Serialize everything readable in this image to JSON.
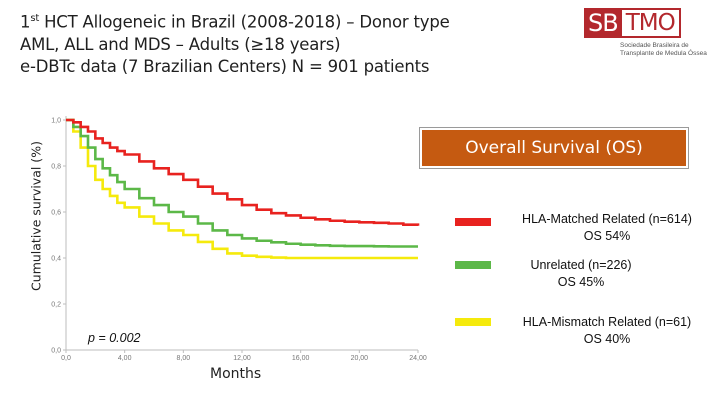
{
  "header": {
    "title_line1_pre": "1",
    "title_line1_sup": "st",
    "title_line1_post": " HCT Allogeneic in Brazil (2008-2018) – Donor type",
    "title_line2": "AML, ALL and MDS – Adults (≥18 years)",
    "title_line3": "e-DBTc data (7 Brazilian Centers) N = 901 patients"
  },
  "logo": {
    "sb": "SB",
    "tmo": "TMO",
    "subtitle": "Sociedade Brasileira de Transplante de Medula Óssea"
  },
  "os_box": {
    "label": "Overall Survival (OS)",
    "color": "#c55a11"
  },
  "chart_data": {
    "type": "line",
    "title": "Overall Survival (OS)",
    "xlabel": "Months",
    "ylabel": "Cumulative survival (%)",
    "xlim": [
      0,
      24
    ],
    "ylim": [
      0,
      1
    ],
    "x_ticks": [
      0,
      4,
      8,
      12,
      16,
      20,
      24
    ],
    "x_tick_labels": [
      "0,0",
      "4,00",
      "8,00",
      "12,00",
      "16,00",
      "20,00",
      "24,00"
    ],
    "y_ticks": [
      0,
      0.2,
      0.4,
      0.6,
      0.8,
      1.0
    ],
    "y_tick_labels": [
      "0,0",
      "0,2",
      "0,4",
      "0,6",
      "0,8",
      "1,0"
    ],
    "annotation": "p = 0.002",
    "series": [
      {
        "name": "HLA-Matched Related (n=614)",
        "os_label": "OS 54%",
        "color": "#e8221f",
        "x": [
          0,
          0.5,
          1,
          1.5,
          2,
          2.5,
          3,
          3.5,
          4,
          5,
          6,
          7,
          8,
          9,
          10,
          11,
          12,
          13,
          14,
          15,
          16,
          17,
          18,
          19,
          20,
          21,
          22,
          23,
          24
        ],
        "y": [
          1.0,
          0.99,
          0.97,
          0.95,
          0.92,
          0.9,
          0.88,
          0.865,
          0.85,
          0.82,
          0.79,
          0.765,
          0.74,
          0.71,
          0.68,
          0.655,
          0.63,
          0.61,
          0.595,
          0.585,
          0.575,
          0.568,
          0.562,
          0.558,
          0.555,
          0.553,
          0.55,
          0.545,
          0.54
        ]
      },
      {
        "name": "Unrelated (n=226)",
        "os_label": "OS 45%",
        "color": "#5cb848",
        "x": [
          0,
          0.5,
          1,
          1.5,
          2,
          2.5,
          3,
          3.5,
          4,
          5,
          6,
          7,
          8,
          9,
          10,
          11,
          12,
          13,
          14,
          15,
          16,
          17,
          18,
          19,
          20,
          21,
          22,
          23,
          24
        ],
        "y": [
          1.0,
          0.97,
          0.93,
          0.88,
          0.83,
          0.79,
          0.76,
          0.73,
          0.7,
          0.66,
          0.63,
          0.6,
          0.58,
          0.55,
          0.52,
          0.5,
          0.485,
          0.475,
          0.468,
          0.462,
          0.458,
          0.455,
          0.453,
          0.452,
          0.452,
          0.451,
          0.45,
          0.45,
          0.45
        ]
      },
      {
        "name": "HLA-Mismatch Related (n=61)",
        "os_label": "OS 40%",
        "color": "#f5ea0c",
        "x": [
          0,
          0.5,
          1,
          1.5,
          2,
          2.5,
          3,
          3.5,
          4,
          5,
          6,
          7,
          8,
          9,
          10,
          11,
          12,
          13,
          14,
          15,
          16,
          17,
          18,
          19,
          20,
          21,
          22,
          23,
          24
        ],
        "y": [
          1.0,
          0.95,
          0.88,
          0.8,
          0.74,
          0.7,
          0.67,
          0.64,
          0.62,
          0.58,
          0.55,
          0.52,
          0.5,
          0.47,
          0.44,
          0.42,
          0.41,
          0.405,
          0.402,
          0.4,
          0.4,
          0.4,
          0.4,
          0.4,
          0.4,
          0.4,
          0.4,
          0.4,
          0.4
        ]
      }
    ]
  }
}
